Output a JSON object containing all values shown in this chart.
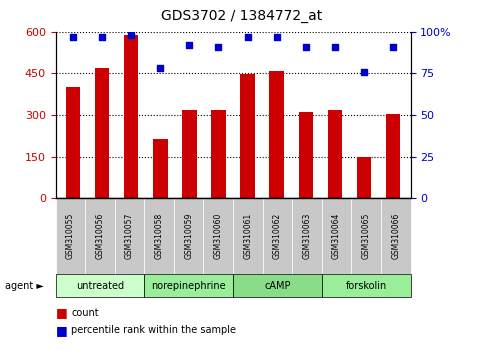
{
  "title": "GDS3702 / 1384772_at",
  "samples": [
    "GSM310055",
    "GSM310056",
    "GSM310057",
    "GSM310058",
    "GSM310059",
    "GSM310060",
    "GSM310061",
    "GSM310062",
    "GSM310063",
    "GSM310064",
    "GSM310065",
    "GSM310066"
  ],
  "counts": [
    400,
    470,
    590,
    215,
    320,
    320,
    448,
    460,
    310,
    320,
    150,
    305
  ],
  "percentiles": [
    97,
    97,
    98,
    78,
    92,
    91,
    97,
    97,
    91,
    91,
    76,
    91
  ],
  "agents": [
    {
      "label": "untreated",
      "start": 0,
      "end": 3
    },
    {
      "label": "norepinephrine",
      "start": 3,
      "end": 6
    },
    {
      "label": "cAMP",
      "start": 6,
      "end": 9
    },
    {
      "label": "forskolin",
      "start": 9,
      "end": 12
    }
  ],
  "agent_colors": [
    "#ccffcc",
    "#99ee99",
    "#88dd88",
    "#99ee99"
  ],
  "bar_color": "#cc0000",
  "dot_color": "#0000cc",
  "ylim_left": [
    0,
    600
  ],
  "ylim_right": [
    0,
    100
  ],
  "yticks_left": [
    0,
    150,
    300,
    450,
    600
  ],
  "yticks_right": [
    0,
    25,
    50,
    75,
    100
  ],
  "plot_bg_color": "#ffffff",
  "legend_count_label": "count",
  "legend_pct_label": "percentile rank within the sample",
  "agent_label": "agent"
}
